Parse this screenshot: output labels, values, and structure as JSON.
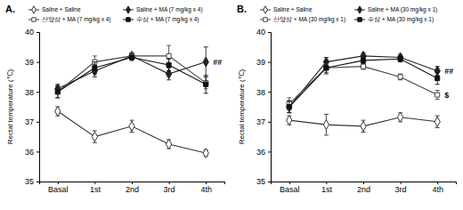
{
  "chart_data": [
    {
      "type": "line",
      "title": "A.",
      "y_label": "Rectal temperature (℃)",
      "categories": [
        "Basal",
        "1st",
        "2nd",
        "3rd",
        "4th"
      ],
      "ylim": [
        35,
        40
      ],
      "yticks": [
        35,
        36,
        37,
        38,
        39,
        40
      ],
      "legend": "upper left",
      "series": [
        {
          "name": "Saline + Saline",
          "color": "#333333",
          "marker": "diamond-open",
          "values": [
            37.35,
            36.5,
            36.85,
            36.25,
            35.95
          ],
          "errors": [
            0.15,
            0.2,
            0.2,
            0.15,
            0.1
          ]
        },
        {
          "name": "Saline + MA (7 mg/kg x 4)",
          "color": "#222222",
          "marker": "diamond",
          "values": [
            38.1,
            38.7,
            39.2,
            38.6,
            39.0
          ],
          "errors": [
            0.15,
            0.2,
            0.1,
            0.2,
            0.5
          ]
        },
        {
          "name": "산양삼 + MA (7 mg/kg x 4)",
          "color": "#444444",
          "marker": "square-open",
          "values": [
            38.0,
            39.0,
            39.2,
            39.2,
            38.3
          ],
          "errors": [
            0.2,
            0.2,
            0.1,
            0.35,
            0.2
          ]
        },
        {
          "name": "수삼 + MA (7 mg/kg x 4)",
          "color": "#111111",
          "marker": "square",
          "values": [
            38.0,
            38.8,
            39.15,
            38.9,
            38.25
          ],
          "errors": [
            0.2,
            0.2,
            0.1,
            0.2,
            0.3
          ]
        }
      ],
      "annotations": [
        {
          "text": "##",
          "series": "Saline + MA (7 mg/kg x 4)"
        }
      ]
    },
    {
      "type": "line",
      "title": "B.",
      "y_label": "Rectal temperature (℃)",
      "categories": [
        "Basal",
        "1st",
        "2nd",
        "3rd",
        "4th"
      ],
      "ylim": [
        35,
        40
      ],
      "yticks": [
        35,
        36,
        37,
        38,
        39,
        40
      ],
      "legend": "upper left",
      "series": [
        {
          "name": "Saline + Saline",
          "color": "#333333",
          "marker": "diamond-open",
          "values": [
            37.05,
            36.9,
            36.85,
            37.15,
            37.0
          ],
          "errors": [
            0.15,
            0.35,
            0.2,
            0.15,
            0.2
          ]
        },
        {
          "name": "Saline + MA (30 mg/kg x 1)",
          "color": "#222222",
          "marker": "diamond",
          "values": [
            37.5,
            39.0,
            39.2,
            39.15,
            38.7
          ],
          "errors": [
            0.2,
            0.15,
            0.1,
            0.1,
            0.15
          ]
        },
        {
          "name": "산양삼 + MA (30 mg/kg x 1)",
          "color": "#444444",
          "marker": "square-open",
          "values": [
            37.6,
            38.8,
            38.85,
            38.5,
            37.9
          ],
          "errors": [
            0.2,
            0.15,
            0.1,
            0.1,
            0.15
          ]
        },
        {
          "name": "수삼 + MA (30 mg/kg x 1)",
          "color": "#111111",
          "marker": "square",
          "values": [
            37.5,
            38.8,
            39.05,
            39.1,
            38.45
          ],
          "errors": [
            0.2,
            0.2,
            0.1,
            0.1,
            0.2
          ]
        }
      ],
      "annotations": [
        {
          "text": "##",
          "series": "Saline + MA (30 mg/kg x 1)"
        },
        {
          "text": "$",
          "series": "산양삼 + MA (30 mg/kg x 1)"
        }
      ]
    }
  ]
}
